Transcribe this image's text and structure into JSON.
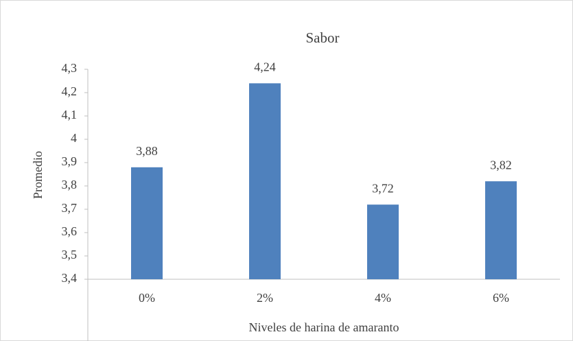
{
  "chart_data": {
    "type": "bar",
    "title": "Sabor",
    "x_label": "Niveles de harina de amaranto",
    "y_label": "Promedio",
    "categories": [
      "0%",
      "2%",
      "4%",
      "6%"
    ],
    "values": [
      3.88,
      4.24,
      3.72,
      3.82
    ],
    "value_labels": [
      "3,88",
      "4,24",
      "3,72",
      "3,82"
    ],
    "color": "#4f81bd",
    "ylim": [
      3.4,
      4.3
    ],
    "yticks": [
      {
        "value": 3.4,
        "label": "3,4"
      },
      {
        "value": 3.5,
        "label": "3,5"
      },
      {
        "value": 3.6,
        "label": "3,6"
      },
      {
        "value": 3.7,
        "label": "3,7"
      },
      {
        "value": 3.8,
        "label": "3,8"
      },
      {
        "value": 3.9,
        "label": "3,9"
      },
      4,
      {
        "value": 4.1,
        "label": "4,1"
      },
      {
        "value": 4.2,
        "label": "4,2"
      },
      {
        "value": 4.3,
        "label": "4,3"
      }
    ],
    "grid": false
  }
}
